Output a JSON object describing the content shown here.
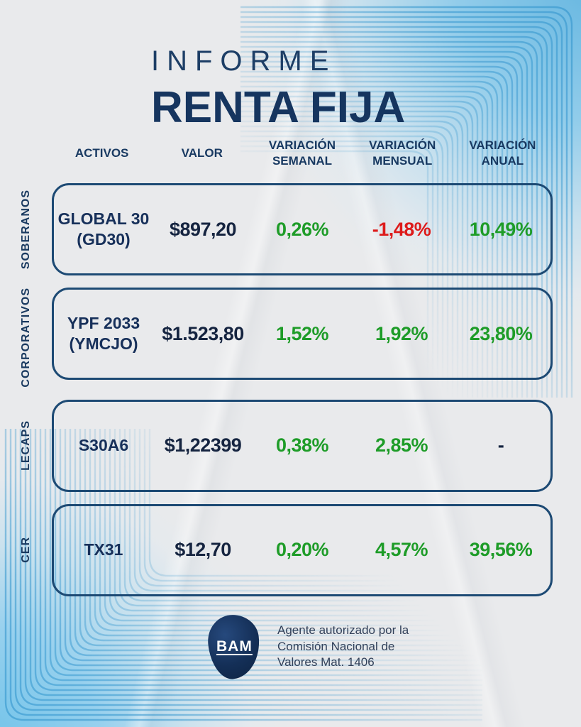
{
  "palette": {
    "paper": "#e9eaec",
    "navy_title": "#16355f",
    "navy_border": "#1d4a74",
    "value_dark": "#152440",
    "positive_green": "#1e9c28",
    "negative_red": "#dd1b1b",
    "corner_blue": "#6fc0e8",
    "decor_line_blue": "#2f93cc",
    "logo_navy": "#142f57"
  },
  "title": {
    "kicker": "INFORME",
    "main": "RENTA FIJA"
  },
  "table": {
    "columns": [
      "ACTIVOS",
      "VALOR",
      "VARIACIÓN\nSEMANAL",
      "VARIACIÓN\nMENSUAL",
      "VARIACIÓN\nANUAL"
    ],
    "rows": [
      {
        "group": "SOBERANOS",
        "name": "GLOBAL 30\n(GD30)",
        "valor": "$897,20",
        "semanal": "0,26%",
        "mensual": "-1,48%",
        "anual": "10,49%"
      },
      {
        "group": "CORPORATIVOS",
        "name": "YPF 2033\n(YMCJO)",
        "valor": "$1.523,80",
        "semanal": "1,52%",
        "mensual": "1,92%",
        "anual": "23,80%"
      },
      {
        "group": "LECAPS",
        "name": "S30A6",
        "valor": "$1,22399",
        "semanal": "0,38%",
        "mensual": "2,85%",
        "anual": "-"
      },
      {
        "group": "CER",
        "name": "TX31",
        "valor": "$12,70",
        "semanal": "0,20%",
        "mensual": "4,57%",
        "anual": "39,56%"
      }
    ]
  },
  "footer": {
    "logo": "BAM",
    "disclaimer": "Agente autorizado por la\nComisión Nacional de\nValores Mat. 1406"
  },
  "chart_data": {
    "type": "table",
    "title": "INFORME RENTA FIJA",
    "columns": [
      "ACTIVOS",
      "VALOR",
      "VARIACIÓN SEMANAL",
      "VARIACIÓN MENSUAL",
      "VARIACIÓN ANUAL"
    ],
    "row_groups": [
      "SOBERANOS",
      "CORPORATIVOS",
      "LECAPS",
      "CER"
    ],
    "rows": [
      {
        "group": "SOBERANOS",
        "activo": "GLOBAL 30 (GD30)",
        "valor": "$897,20",
        "variacion_semanal": "0,26%",
        "variacion_mensual": "-1,48%",
        "variacion_anual": "10,49%",
        "semanal_signo": "positivo",
        "mensual_signo": "negativo",
        "anual_signo": "positivo"
      },
      {
        "group": "CORPORATIVOS",
        "activo": "YPF 2033 (YMCJO)",
        "valor": "$1.523,80",
        "variacion_semanal": "1,52%",
        "variacion_mensual": "1,92%",
        "variacion_anual": "23,80%",
        "semanal_signo": "positivo",
        "mensual_signo": "positivo",
        "anual_signo": "positivo"
      },
      {
        "group": "LECAPS",
        "activo": "S30A6",
        "valor": "$1,22399",
        "variacion_semanal": "0,38%",
        "variacion_mensual": "2,85%",
        "variacion_anual": "-",
        "semanal_signo": "positivo",
        "mensual_signo": "positivo",
        "anual_signo": "sin dato"
      },
      {
        "group": "CER",
        "activo": "TX31",
        "valor": "$12,70",
        "variacion_semanal": "0,20%",
        "variacion_mensual": "4,57%",
        "variacion_anual": "39,56%",
        "semanal_signo": "positivo",
        "mensual_signo": "positivo",
        "anual_signo": "positivo"
      }
    ],
    "footer_note": "Agente autorizado por la Comisión Nacional de Valores Mat. 1406",
    "brand": "BAM"
  }
}
